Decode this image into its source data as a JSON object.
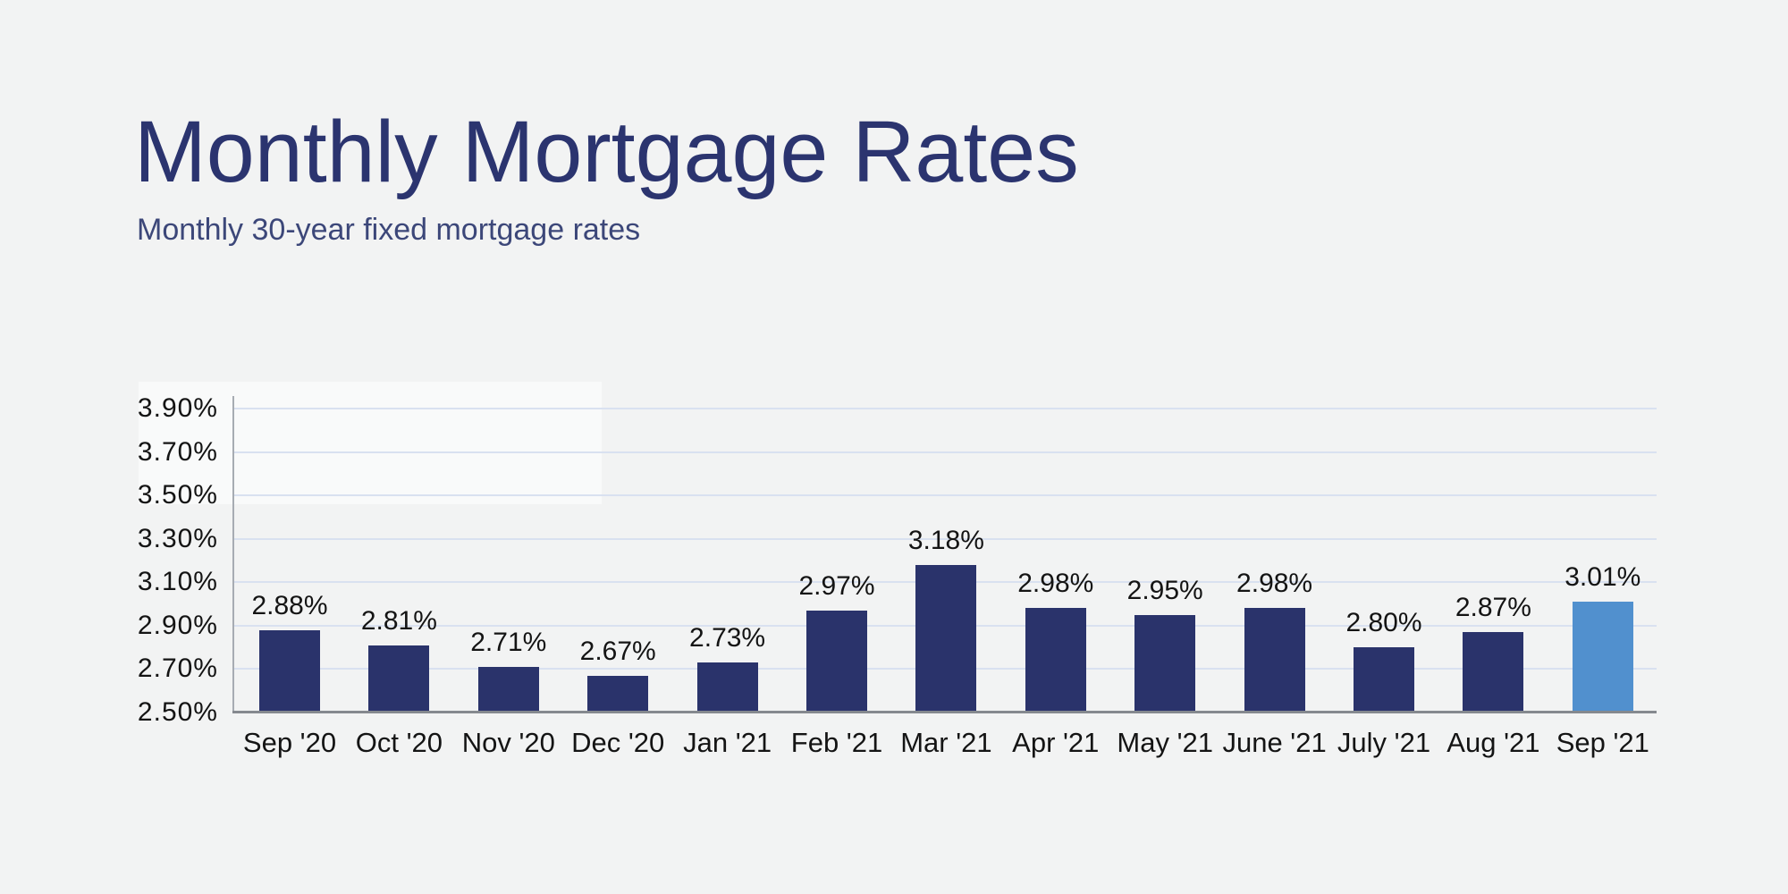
{
  "page": {
    "background_color": "#f2f3f3"
  },
  "header": {
    "title": "Monthly Mortgage Rates",
    "subtitle": "Monthly 30-year fixed mortgage rates",
    "title_color": "#2b346f",
    "subtitle_color": "#3c4779"
  },
  "chart_data": {
    "type": "bar",
    "title": "Monthly Mortgage Rates",
    "subtitle": "Monthly 30-year fixed mortgage rates",
    "xlabel": "",
    "ylabel": "",
    "categories": [
      "Sep '20",
      "Oct '20",
      "Nov '20",
      "Dec '20",
      "Jan '21",
      "Feb '21",
      "Mar '21",
      "Apr '21",
      "May '21",
      "June '21",
      "July '21",
      "Aug '21",
      "Sep '21"
    ],
    "values": [
      2.88,
      2.81,
      2.71,
      2.67,
      2.73,
      2.97,
      3.18,
      2.98,
      2.95,
      2.98,
      2.8,
      2.87,
      3.01
    ],
    "value_labels": [
      "2.88%",
      "2.81%",
      "2.71%",
      "2.67%",
      "2.73%",
      "2.97%",
      "3.18%",
      "2.98%",
      "2.95%",
      "2.98%",
      "2.80%",
      "2.87%",
      "3.01%"
    ],
    "ylim": [
      2.5,
      3.95
    ],
    "yticks": [
      3.9,
      3.7,
      3.5,
      3.3,
      3.1,
      2.9,
      2.7,
      2.5
    ],
    "ytick_labels": [
      "3.90%",
      "3.70%",
      "3.50%",
      "3.30%",
      "3.10%",
      "2.90%",
      "2.70%",
      "2.50%"
    ],
    "grid": true,
    "legend_position": "none",
    "bar_color": "#2a336b",
    "highlight_index": 12,
    "highlight_color": "#5190ce",
    "gridline_color": "#d9e1f0",
    "y_axis_line_color": "#a7acb3",
    "x_axis_line_color": "#85898f",
    "label_text_color": "#141414"
  }
}
